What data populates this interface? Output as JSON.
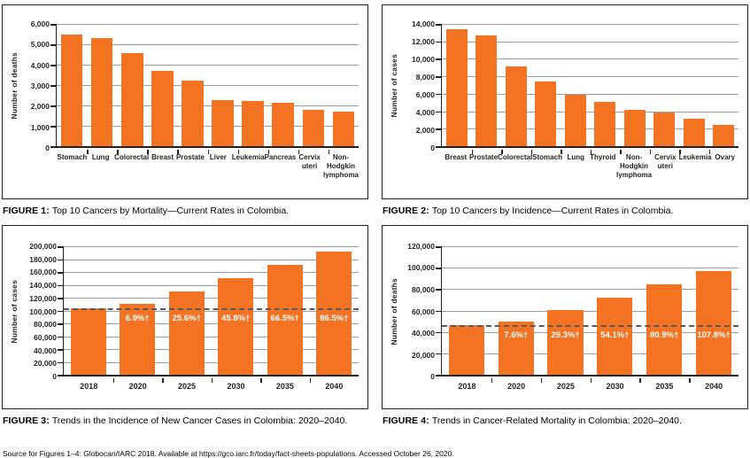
{
  "source_note": "Source for Figures 1–4: Globocan/IARC 2018. Available at https://gco.iarc.fr/today/fact-sheets-populations. Accessed October 26, 2020.",
  "colors": {
    "bar": "#F47322",
    "axis": "#231F20",
    "grid": "#9B9DA0",
    "baseline_dash": "#58595B",
    "pct_label_text": "#FFFFFF"
  },
  "chart_data": [
    {
      "id": "figure-1",
      "type": "bar",
      "caption_label": "FIGURE 1:",
      "caption_text": "Top 10 Cancers by Mortality—Current Rates in Colombia.",
      "ylabel": "Number of deaths",
      "ylim": [
        0,
        6000
      ],
      "ytick_step": 1000,
      "grid": true,
      "legend": "none",
      "categories": [
        [
          "Stomach"
        ],
        [
          "Lung"
        ],
        [
          "Colorectal"
        ],
        [
          "Breast"
        ],
        [
          "Prostate"
        ],
        [
          "Liver"
        ],
        [
          "Leukemia"
        ],
        [
          "Pancreas"
        ],
        [
          "Cervix",
          "uteri"
        ],
        [
          "Non-",
          "Hodgkin",
          "lymphoma"
        ]
      ],
      "values": [
        5500,
        5300,
        4550,
        3700,
        3200,
        2250,
        2200,
        2150,
        1800,
        1700
      ]
    },
    {
      "id": "figure-2",
      "type": "bar",
      "caption_label": "FIGURE 2:",
      "caption_text": "Top 10 Cancers by Incidence—Current Rates in Colombia.",
      "ylabel": "Number of cases",
      "ylim": [
        0,
        14000
      ],
      "ytick_step": 2000,
      "grid": true,
      "legend": "none",
      "categories": [
        [
          "Breast"
        ],
        [
          "Prostate"
        ],
        [
          "Colorectal"
        ],
        [
          "Stomach"
        ],
        [
          "Lung"
        ],
        [
          "Thyroid"
        ],
        [
          "Non-",
          "Hodgkin",
          "lymphoma"
        ],
        [
          "Cervix",
          "uteri"
        ],
        [
          "Leukemia"
        ],
        [
          "Ovary"
        ]
      ],
      "values": [
        13400,
        12700,
        9150,
        7400,
        5850,
        5100,
        4150,
        3850,
        3150,
        2450
      ]
    },
    {
      "id": "figure-3",
      "type": "bar",
      "caption_label": "FIGURE 3:",
      "caption_text": "Trends in the Incidence of New Cancer Cases in Colombia: 2020–2040.",
      "ylabel": "Number of cases",
      "ylim": [
        0,
        200000
      ],
      "ytick_step": 20000,
      "grid": true,
      "legend": "none",
      "categories": [
        [
          "2018"
        ],
        [
          "2020"
        ],
        [
          "2025"
        ],
        [
          "2030"
        ],
        [
          "2035"
        ],
        [
          "2040"
        ]
      ],
      "values": [
        103000,
        110100,
        129400,
        150200,
        171500,
        192100
      ],
      "pct_labels": [
        null,
        "6.9%†",
        "25.6%†",
        "45.8%†",
        "66.5%†",
        "86.5%†"
      ],
      "baseline_value": 103000
    },
    {
      "id": "figure-4",
      "type": "bar",
      "caption_label": "FIGURE 4:",
      "caption_text": "Trends in Cancer-Related Mortality in Colombia: 2020–2040.",
      "ylabel": "Number of deaths",
      "ylim": [
        0,
        120000
      ],
      "ytick_step": 20000,
      "grid": true,
      "legend": "none",
      "categories": [
        [
          "2018"
        ],
        [
          "2020"
        ],
        [
          "2025"
        ],
        [
          "2030"
        ],
        [
          "2035"
        ],
        [
          "2040"
        ]
      ],
      "values": [
        46500,
        50000,
        60100,
        71700,
        84100,
        96600
      ],
      "pct_labels": [
        null,
        "7.6%†",
        "29.3%†",
        "54.1%†",
        "80.9%†",
        "107.8%†"
      ],
      "baseline_value": 46500
    }
  ]
}
